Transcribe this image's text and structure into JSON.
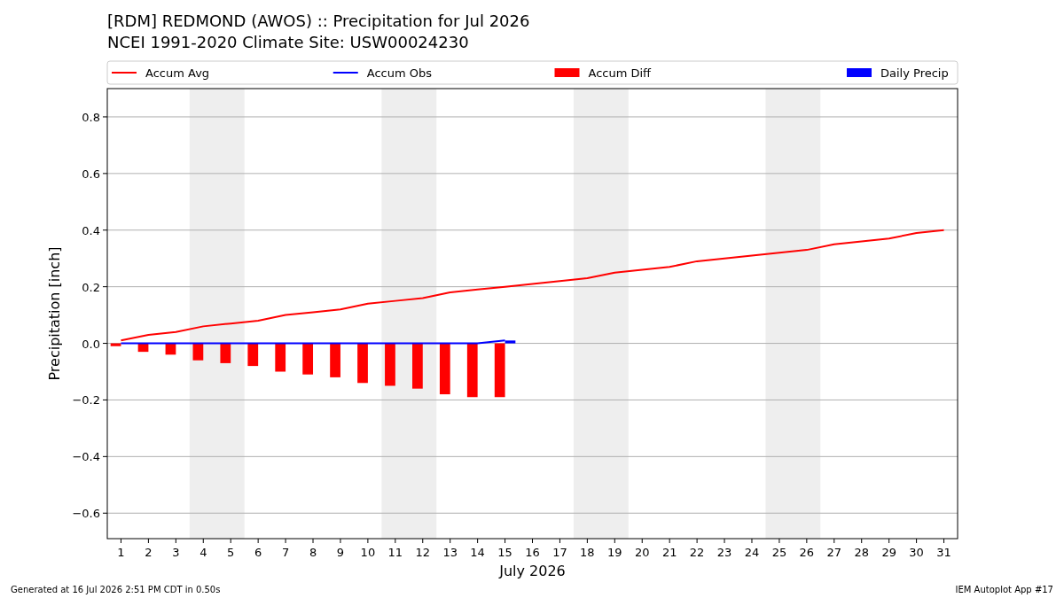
{
  "chart_data": {
    "type": "line",
    "title": "[RDM] REDMOND (AWOS) :: Precipitation for Jul 2026",
    "subtitle": "NCEI 1991-2020 Climate Site: USW00024230",
    "xlabel": "July 2026",
    "ylabel": "Precipitation [inch]",
    "x": [
      1,
      2,
      3,
      4,
      5,
      6,
      7,
      8,
      9,
      10,
      11,
      12,
      13,
      14,
      15,
      16,
      17,
      18,
      19,
      20,
      21,
      22,
      23,
      24,
      25,
      26,
      27,
      28,
      29,
      30,
      31
    ],
    "series": [
      {
        "name": "Accum Avg",
        "color": "#ff0000",
        "values": [
          0.01,
          0.03,
          0.04,
          0.06,
          0.07,
          0.08,
          0.1,
          0.11,
          0.12,
          0.14,
          0.15,
          0.16,
          0.18,
          0.19,
          0.2,
          0.21,
          0.22,
          0.23,
          0.25,
          0.26,
          0.27,
          0.29,
          0.3,
          0.31,
          0.32,
          0.33,
          0.35,
          0.36,
          0.37,
          0.39,
          0.4
        ]
      },
      {
        "name": "Accum Obs",
        "color": "#0000ff",
        "x": [
          1,
          2,
          3,
          4,
          5,
          6,
          7,
          8,
          9,
          10,
          11,
          12,
          13,
          14,
          15
        ],
        "values": [
          0,
          0,
          0,
          0,
          0,
          0,
          0,
          0,
          0,
          0,
          0,
          0,
          0,
          0,
          0.01
        ]
      },
      {
        "name": "Accum Diff",
        "type": "bar",
        "color": "#ff0000",
        "x": [
          1,
          2,
          3,
          4,
          5,
          6,
          7,
          8,
          9,
          10,
          11,
          12,
          13,
          14,
          15
        ],
        "values": [
          -0.01,
          -0.03,
          -0.04,
          -0.06,
          -0.07,
          -0.08,
          -0.1,
          -0.11,
          -0.12,
          -0.14,
          -0.15,
          -0.16,
          -0.18,
          -0.19,
          -0.19
        ]
      },
      {
        "name": "Daily Precip",
        "type": "bar",
        "color": "#0000ff",
        "x": [
          1,
          2,
          3,
          4,
          5,
          6,
          7,
          8,
          9,
          10,
          11,
          12,
          13,
          14,
          15
        ],
        "values": [
          0,
          0,
          0,
          0,
          0,
          0,
          0,
          0,
          0,
          0,
          0,
          0,
          0,
          0,
          0.01
        ]
      }
    ],
    "xlim": [
      0.5,
      31.5
    ],
    "xticks": [
      1,
      2,
      3,
      4,
      5,
      6,
      7,
      8,
      9,
      10,
      11,
      12,
      13,
      14,
      15,
      16,
      17,
      18,
      19,
      20,
      21,
      22,
      23,
      24,
      25,
      26,
      27,
      28,
      29,
      30,
      31
    ],
    "ylim": [
      -0.69,
      0.9
    ],
    "yticks": [
      {
        "value": -0.6,
        "label": "−0.6"
      },
      {
        "value": -0.4,
        "label": "−0.4"
      },
      {
        "value": -0.2,
        "label": "−0.2"
      },
      {
        "value": 0,
        "label": "0.0"
      },
      {
        "value": 0.2,
        "label": "0.2"
      },
      {
        "value": 0.4,
        "label": "0.4"
      },
      {
        "value": 0.6,
        "label": "0.6"
      },
      {
        "value": 0.8,
        "label": "0.8"
      }
    ],
    "bands": [
      {
        "axis": "x",
        "from": 3.5,
        "to": 5.5,
        "color": "#eeeeee"
      },
      {
        "axis": "x",
        "from": 10.5,
        "to": 12.5,
        "color": "#eeeeee"
      },
      {
        "axis": "x",
        "from": 17.5,
        "to": 19.5,
        "color": "#eeeeee"
      },
      {
        "axis": "x",
        "from": 24.5,
        "to": 26.5,
        "color": "#eeeeee"
      }
    ],
    "grid": "y",
    "legend": "top",
    "annotations": [
      "Generated at 16 Jul 2026 2:51 PM CDT in 0.50s",
      "IEM Autoplot App #17"
    ]
  }
}
